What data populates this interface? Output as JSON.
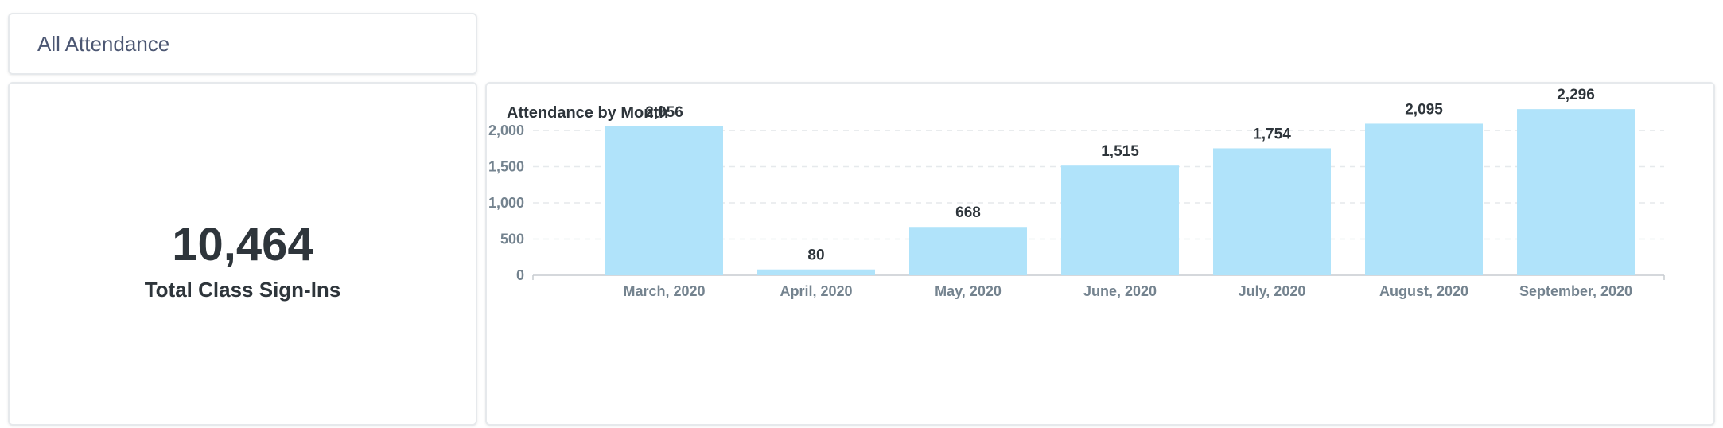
{
  "header": {
    "title": "All Attendance"
  },
  "kpi": {
    "value": "10,464",
    "label": "Total Class Sign-Ins"
  },
  "colors": {
    "bar": "#b0e3fa",
    "gridline": "#e6e9ec",
    "axis": "#c7ccd1",
    "tick_text": "#74838f",
    "label_text": "#2e353b"
  },
  "chart_data": {
    "type": "bar",
    "title": "Attendance by Month",
    "xlabel": "",
    "ylabel": "",
    "categories": [
      "March, 2020",
      "April, 2020",
      "May, 2020",
      "June, 2020",
      "July, 2020",
      "August, 2020",
      "September, 2020"
    ],
    "values": [
      2056,
      80,
      668,
      1515,
      1754,
      2095,
      2296
    ],
    "data_labels": [
      "2,056",
      "80",
      "668",
      "1,515",
      "1,754",
      "2,095",
      "2,296"
    ],
    "yticks": [
      0,
      500,
      1000,
      1500,
      2000
    ],
    "ytick_labels": [
      "0",
      "500",
      "1,000",
      "1,500",
      "2,000"
    ],
    "ylim": [
      0,
      2296
    ],
    "grid": true,
    "legend": "none"
  }
}
